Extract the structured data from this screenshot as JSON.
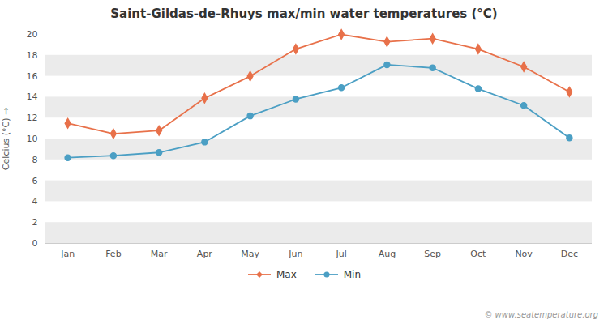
{
  "chart_data": {
    "type": "line",
    "title": "Saint-Gildas-de-Rhuys max/min water temperatures (°C)",
    "ylabel": "Celcius (°C)",
    "categories": [
      "Jan",
      "Feb",
      "Mar",
      "Apr",
      "May",
      "Jun",
      "Jul",
      "Aug",
      "Sep",
      "Oct",
      "Nov",
      "Dec"
    ],
    "series": [
      {
        "name": "Max",
        "color": "#e8714a",
        "marker": "diamond",
        "line_style": "solid",
        "values": [
          11.5,
          10.5,
          10.8,
          13.9,
          16.0,
          18.6,
          20.0,
          19.3,
          19.6,
          18.6,
          16.9,
          14.5
        ]
      },
      {
        "name": "Min",
        "color": "#4b9fc4",
        "marker": "circle",
        "line_style": "solid",
        "values": [
          8.2,
          8.4,
          8.7,
          9.7,
          12.2,
          13.8,
          14.9,
          17.1,
          16.8,
          14.8,
          13.2,
          10.1
        ]
      }
    ],
    "ylim": [
      0,
      20
    ],
    "yticks": [
      0,
      2,
      4,
      6,
      8,
      10,
      12,
      14,
      16,
      18,
      20
    ],
    "grid": false,
    "legend": "bottom",
    "annotations": [
      "© www.seatemperature.org"
    ]
  }
}
